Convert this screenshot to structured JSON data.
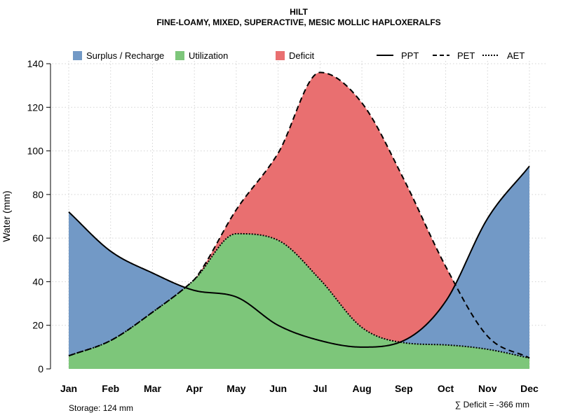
{
  "chart_data": {
    "type": "area",
    "title": "HILT",
    "subtitle": "FINE-LOAMY, MIXED, SUPERACTIVE, MESIC MOLLIC HAPLOXERALFS",
    "xlabel": "",
    "ylabel": "Water (mm)",
    "ylim": [
      0,
      140
    ],
    "yticks": [
      0,
      20,
      40,
      60,
      80,
      100,
      120,
      140
    ],
    "categories": [
      "Jan",
      "Feb",
      "Mar",
      "Apr",
      "May",
      "Jun",
      "Jul",
      "Aug",
      "Sep",
      "Oct",
      "Nov",
      "Dec"
    ],
    "grid": true,
    "legend_position": "top",
    "series": [
      {
        "name": "PPT",
        "line_style": "solid",
        "color": "#000000",
        "values": [
          72,
          54,
          44,
          36,
          33,
          20,
          13,
          10,
          13,
          31,
          69,
          93
        ]
      },
      {
        "name": "PET",
        "line_style": "dashed",
        "color": "#000000",
        "values": [
          6,
          13,
          26,
          41,
          73,
          99,
          136,
          122,
          87,
          47,
          15,
          5
        ]
      },
      {
        "name": "AET",
        "line_style": "dotted",
        "color": "#000000",
        "values": [
          6,
          13,
          26,
          41,
          62,
          59,
          41,
          19,
          12,
          11,
          9,
          5
        ]
      }
    ],
    "legend": [
      {
        "key": "surplus",
        "label": "Surplus / Recharge",
        "kind": "fill",
        "color": "#7299C6"
      },
      {
        "key": "utilization",
        "label": "Utilization",
        "kind": "fill",
        "color": "#7DC67A"
      },
      {
        "key": "deficit",
        "label": "Deficit",
        "kind": "fill",
        "color": "#E96F70"
      },
      {
        "key": "ppt",
        "label": "PPT",
        "kind": "line",
        "dash": "solid"
      },
      {
        "key": "pet",
        "label": "PET",
        "kind": "line",
        "dash": "dashed"
      },
      {
        "key": "aet",
        "label": "AET",
        "kind": "line",
        "dash": "dotted"
      }
    ],
    "annotations": {
      "storage": "Storage: 124 mm",
      "deficit": "∑ Deficit = -366 mm"
    }
  }
}
